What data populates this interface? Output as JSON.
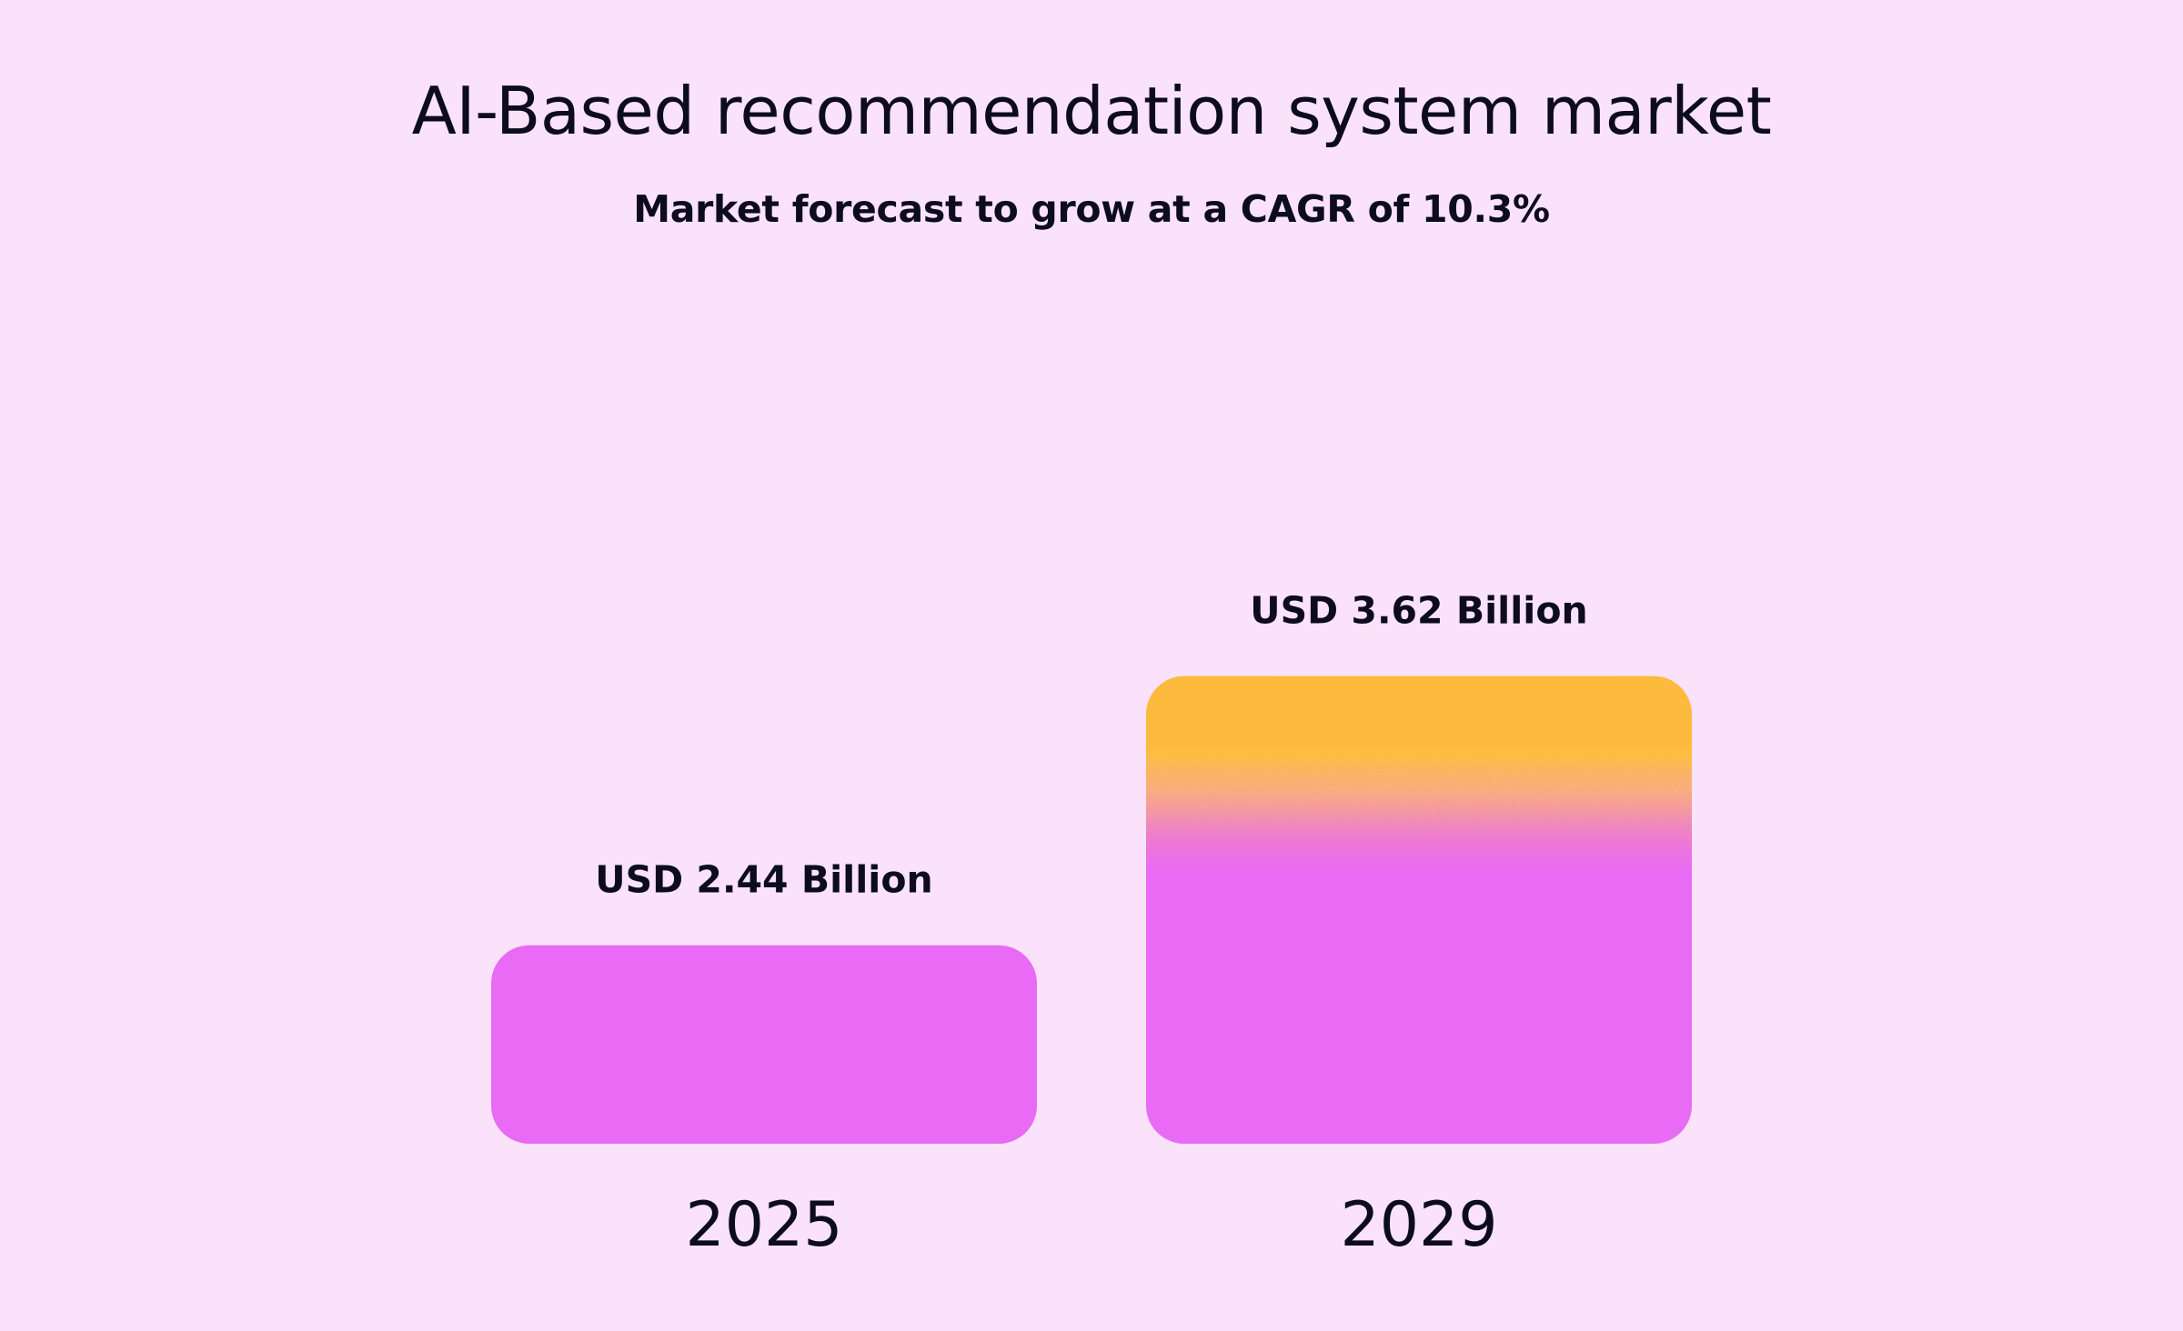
{
  "chart_data": {
    "type": "bar",
    "title": "AI-Based recommendation system market",
    "subtitle": "Market forecast to grow at a CAGR of 10.3%",
    "categories": [
      "2025",
      "2029"
    ],
    "values": [
      2.44,
      3.62
    ],
    "data_labels": [
      "USD 2.44 Billion",
      "USD 3.62 Billion"
    ],
    "xlabel": "",
    "ylabel": "",
    "grid": false,
    "legend": "none",
    "colors": {
      "background": "#f9e2fa",
      "bar": "#e96af4",
      "highlight": "#fdbb3d",
      "text": "#0d0b1f"
    }
  }
}
